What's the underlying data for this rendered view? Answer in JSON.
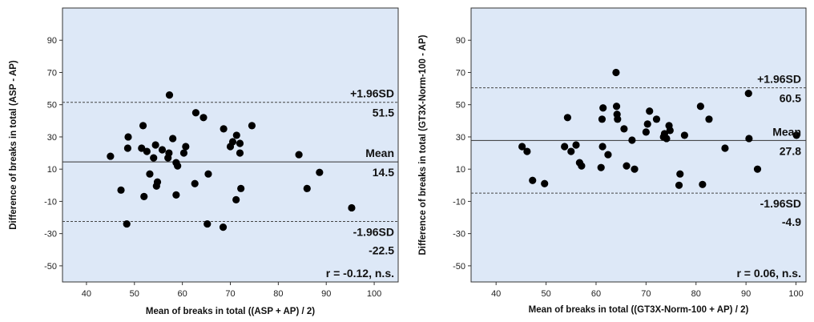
{
  "chart_data": [
    {
      "type": "scatter",
      "xlabel": "Mean of breaks in total ((ASP + AP) / 2)",
      "ylabel": "Difference of breaks in total (ASP - AP)",
      "xlim": [
        35,
        105
      ],
      "ylim": [
        -60,
        110
      ],
      "xticks": [
        40,
        50,
        60,
        70,
        80,
        90,
        100
      ],
      "yticks": [
        -50,
        -30,
        -10,
        10,
        30,
        50,
        70,
        90
      ],
      "grid": false,
      "plot_background": "#dde8f7",
      "mean": 14.5,
      "upper_loa": 51.5,
      "lower_loa": -22.5,
      "labels": {
        "upper": "+1.96SD",
        "upper_value": "51.5",
        "mean": "Mean",
        "mean_value": "14.5",
        "lower": "-1.96SD",
        "lower_value": "-22.5",
        "corr": "r = -0.12, n.s."
      },
      "points": [
        [
          45,
          18
        ],
        [
          47.2,
          -3
        ],
        [
          48.4,
          -24
        ],
        [
          48.6,
          23
        ],
        [
          48.7,
          30
        ],
        [
          51.5,
          23
        ],
        [
          51.8,
          37
        ],
        [
          52,
          -7
        ],
        [
          52.6,
          21
        ],
        [
          53.2,
          7
        ],
        [
          54,
          17
        ],
        [
          54.4,
          25
        ],
        [
          54.6,
          -0.5
        ],
        [
          54.8,
          2
        ],
        [
          55.8,
          22
        ],
        [
          57,
          17
        ],
        [
          57.3,
          56
        ],
        [
          57.2,
          20
        ],
        [
          58,
          29
        ],
        [
          58.7,
          -6
        ],
        [
          58.7,
          14
        ],
        [
          59,
          12
        ],
        [
          60.3,
          20
        ],
        [
          60.7,
          24
        ],
        [
          62.6,
          1
        ],
        [
          62.8,
          45
        ],
        [
          64.4,
          42
        ],
        [
          65.2,
          -24
        ],
        [
          65.4,
          7
        ],
        [
          68.5,
          -26
        ],
        [
          68.6,
          35
        ],
        [
          70,
          24
        ],
        [
          70.5,
          27
        ],
        [
          71.2,
          -9
        ],
        [
          71.3,
          31
        ],
        [
          72,
          26
        ],
        [
          72,
          20
        ],
        [
          72.2,
          -2
        ],
        [
          74.5,
          37
        ],
        [
          84.3,
          19
        ],
        [
          86,
          -2
        ],
        [
          88.6,
          8
        ],
        [
          95.3,
          -14
        ]
      ]
    },
    {
      "type": "scatter",
      "xlabel": "Mean of breaks in total ((GT3X-Norm-100 + AP) / 2)",
      "ylabel": "Difference of breaks in total (GT3X-Norm-100 - AP)",
      "xlim": [
        35,
        102
      ],
      "ylim": [
        -60,
        110
      ],
      "xticks": [
        40,
        50,
        60,
        70,
        80,
        90,
        100
      ],
      "yticks": [
        -50,
        -30,
        -10,
        10,
        30,
        50,
        70,
        90
      ],
      "grid": false,
      "plot_background": "#dde8f7",
      "mean": 27.8,
      "upper_loa": 60.5,
      "lower_loa": -4.9,
      "labels": {
        "upper": "+1.96SD",
        "upper_value": "60.5",
        "mean": "Mean",
        "mean_value": "27.8",
        "lower": "-1.96SD",
        "lower_value": "-4.9",
        "corr": "r = 0.06, n.s."
      },
      "points": [
        [
          45.2,
          24
        ],
        [
          46.2,
          21
        ],
        [
          47.3,
          3
        ],
        [
          49.7,
          1
        ],
        [
          53.7,
          24
        ],
        [
          54.3,
          42
        ],
        [
          55,
          21
        ],
        [
          56,
          25
        ],
        [
          56.7,
          14
        ],
        [
          57.1,
          12
        ],
        [
          61.2,
          41
        ],
        [
          61,
          11
        ],
        [
          61.4,
          48
        ],
        [
          61.3,
          24
        ],
        [
          62.4,
          19
        ],
        [
          64,
          70
        ],
        [
          64.1,
          49
        ],
        [
          64.2,
          44
        ],
        [
          64.3,
          41
        ],
        [
          65.6,
          35
        ],
        [
          66.1,
          12
        ],
        [
          67.2,
          28
        ],
        [
          67.7,
          10
        ],
        [
          70,
          33
        ],
        [
          70.3,
          38
        ],
        [
          70.7,
          46
        ],
        [
          72.1,
          41
        ],
        [
          73.5,
          30
        ],
        [
          73.7,
          32
        ],
        [
          74.1,
          29
        ],
        [
          74.6,
          37
        ],
        [
          74.8,
          34
        ],
        [
          76.6,
          0
        ],
        [
          76.8,
          7
        ],
        [
          77.7,
          31
        ],
        [
          80.9,
          49
        ],
        [
          81.3,
          0.5
        ],
        [
          82.6,
          41
        ],
        [
          85.8,
          23
        ],
        [
          90.5,
          57
        ],
        [
          90.6,
          29
        ],
        [
          92.3,
          10
        ],
        [
          100.1,
          31
        ]
      ]
    }
  ]
}
